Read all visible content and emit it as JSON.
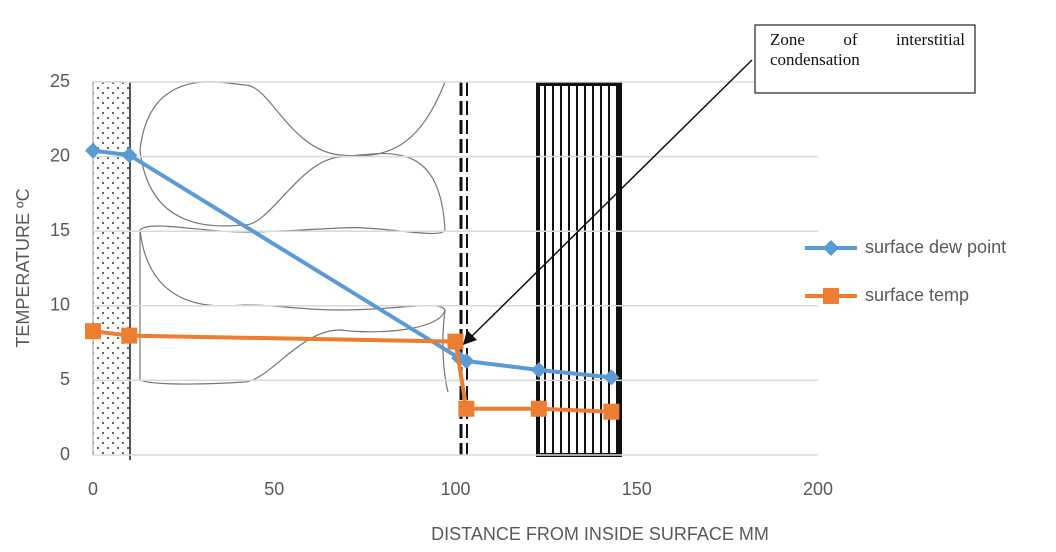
{
  "chart_data": {
    "type": "line",
    "xlabel": "DISTANCE FROM INSIDE SURFACE MM",
    "ylabel": "TEMPERATURE ºC",
    "annotation": "Zone of interstitial condensation",
    "xlim": [
      0,
      200
    ],
    "xticks": [
      0,
      50,
      100,
      150,
      200
    ],
    "ylim": [
      0,
      25
    ],
    "yticks": [
      0,
      5,
      10,
      15,
      20,
      25
    ],
    "grid": true,
    "legend": "right",
    "series": [
      {
        "name": "surface dew point",
        "color": "#5b9bd5",
        "marker": "diamond",
        "x": [
          0,
          10,
          101,
          103,
          123,
          143
        ],
        "values": [
          20.4,
          20.1,
          6.5,
          6.3,
          5.7,
          5.2
        ]
      },
      {
        "name": "surface temp",
        "color": "#ed7d31",
        "marker": "square",
        "x": [
          0,
          10,
          100,
          103,
          123,
          143
        ],
        "values": [
          8.3,
          8.0,
          7.6,
          3.1,
          3.1,
          2.9
        ]
      }
    ]
  }
}
